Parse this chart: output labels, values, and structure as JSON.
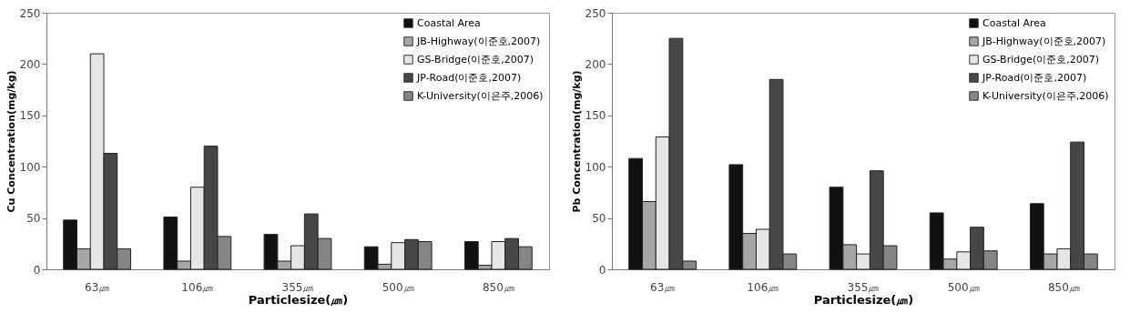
{
  "chart_data": [
    {
      "type": "bar",
      "xlabel": "Particlesize(㎛)",
      "ylabel": "Cu Concentration(mg/kg)",
      "categories": [
        "63㎛",
        "106㎛",
        "355㎛",
        "500㎛",
        "850㎛"
      ],
      "ylim": [
        0,
        250
      ],
      "yticks": [
        0,
        50,
        100,
        150,
        200,
        250
      ],
      "legend": "top right",
      "series": [
        {
          "name": "Coastal Area",
          "color": "#111111",
          "values": [
            48,
            51,
            34,
            22,
            27
          ]
        },
        {
          "name": "JB-Highway(이준호,2007)",
          "color": "#a6a6a6",
          "values": [
            20,
            8,
            8,
            5,
            4
          ]
        },
        {
          "name": "GS-Bridge(이준호,2007)",
          "color": "#e6e6e6",
          "values": [
            210,
            80,
            23,
            26,
            27
          ]
        },
        {
          "name": "JP-Road(이준호,2007)",
          "color": "#474747",
          "values": [
            113,
            120,
            54,
            29,
            30
          ]
        },
        {
          "name": "K-University(이은주,2006)",
          "color": "#858585",
          "values": [
            20,
            32,
            30,
            27,
            22
          ]
        }
      ]
    },
    {
      "type": "bar",
      "xlabel": "Particlesize(㎛)",
      "ylabel": "Pb Concentration(mg/kg)",
      "categories": [
        "63㎛",
        "106㎛",
        "355㎛",
        "500㎛",
        "850㎛"
      ],
      "ylim": [
        0,
        250
      ],
      "yticks": [
        0,
        50,
        100,
        150,
        200,
        250
      ],
      "legend": "top right",
      "series": [
        {
          "name": "Coastal Area",
          "color": "#111111",
          "values": [
            108,
            102,
            80,
            55,
            64
          ]
        },
        {
          "name": "JB-Highway(이준호,2007)",
          "color": "#a6a6a6",
          "values": [
            66,
            35,
            24,
            10,
            15
          ]
        },
        {
          "name": "GS-Bridge(이준호,2007)",
          "color": "#e6e6e6",
          "values": [
            129,
            39,
            15,
            17,
            20
          ]
        },
        {
          "name": "JP-Road(이준호,2007)",
          "color": "#474747",
          "values": [
            225,
            185,
            96,
            41,
            124
          ]
        },
        {
          "name": "K-University(이은주,2006)",
          "color": "#858585",
          "values": [
            8,
            15,
            23,
            18,
            15
          ]
        }
      ]
    }
  ]
}
